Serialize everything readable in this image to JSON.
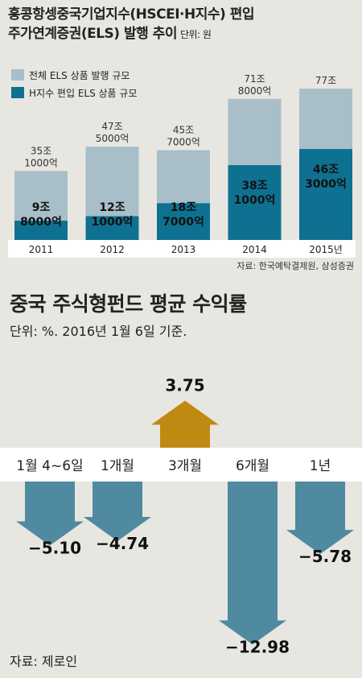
{
  "chart_els": {
    "title_line1": "홍콩항셍중국기업지수(HSCEI·H지수) 편입",
    "title_line2": "주가연계증권(ELS) 발행 추이",
    "unit": "단위: 원",
    "legend": [
      "전체 ELS 상품 발행 규모",
      "H지수 편입 ELS 상품 규모"
    ],
    "source": "자료: 한국예탁결제원, 삼성증권",
    "colors": {
      "total": "#a8bec8",
      "h": "#0e7191"
    },
    "chart_data": {
      "type": "bar",
      "categories": [
        "2011",
        "2012",
        "2013",
        "2014",
        "2015년"
      ],
      "series": [
        {
          "name": "전체 ELS 상품 발행 규모",
          "values": [
            35.1,
            47.5,
            45.7,
            71.8,
            77
          ]
        },
        {
          "name": "H지수 편입 ELS 상품 규모",
          "values": [
            9.8,
            12.1,
            18.7,
            38.1,
            46.3
          ]
        }
      ],
      "total_labels": [
        [
          "35조",
          "1000억"
        ],
        [
          "47조",
          "5000억"
        ],
        [
          "45조",
          "7000억"
        ],
        [
          "71조",
          "8000억"
        ],
        [
          "77조"
        ]
      ],
      "h_labels": [
        [
          "9조",
          "8000억"
        ],
        [
          "12조",
          "1000억"
        ],
        [
          "18조",
          "7000억"
        ],
        [
          "38조",
          "1000억"
        ],
        [
          "46조",
          "3000억"
        ]
      ]
    }
  },
  "chart_fund": {
    "title": "중국 주식형펀드 평균 수익률",
    "subtitle": "단위: %. 2016년 1월 6일 기준.",
    "source": "자료: 제로인",
    "colors": {
      "up": "#c08a12",
      "down": "#4f8aa0",
      "band": "#ffffff"
    },
    "chart_data": {
      "type": "bar",
      "categories": [
        "1월 4~6일",
        "1개월",
        "3개월",
        "6개월",
        "1년"
      ],
      "values": [
        -5.1,
        -4.74,
        3.75,
        -12.98,
        -5.78
      ],
      "value_labels": [
        "−5.10",
        "−4.74",
        "3.75",
        "−12.98",
        "−5.78"
      ]
    }
  }
}
